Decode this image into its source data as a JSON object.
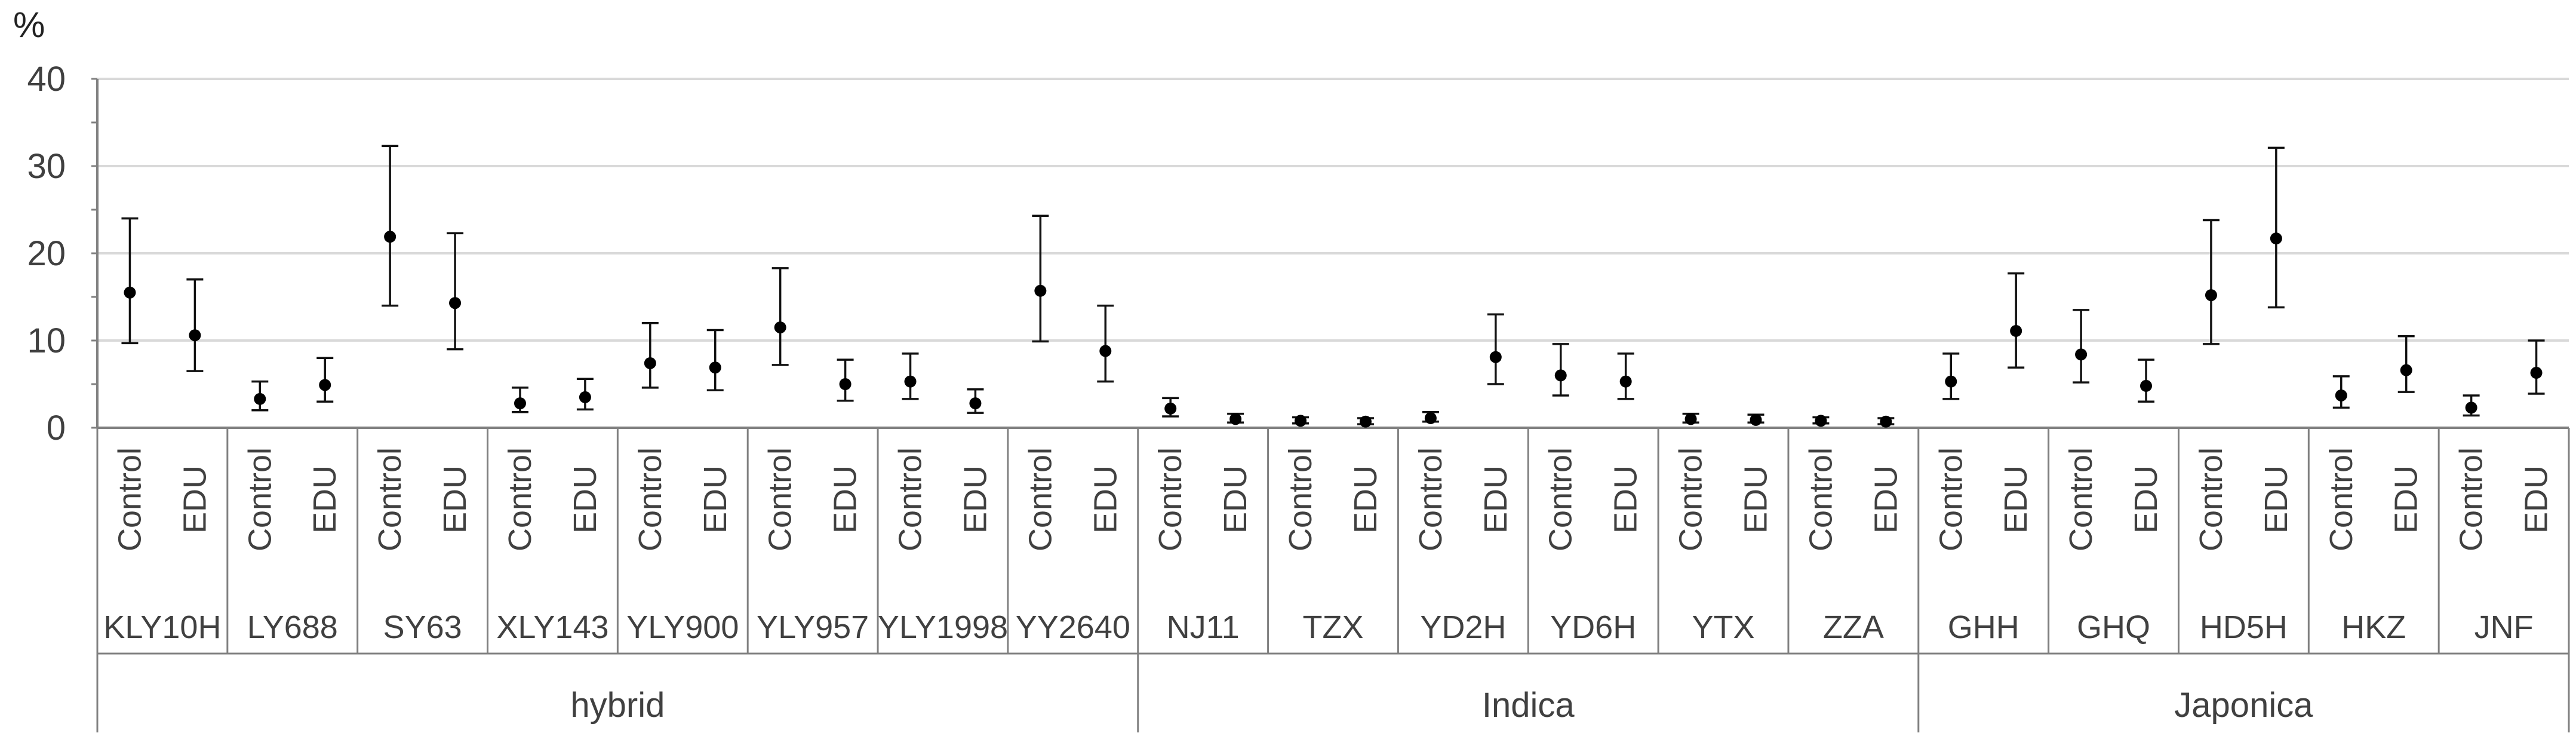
{
  "chart_data": {
    "type": "scatter",
    "ylabel": "%",
    "ylim": [
      0,
      40
    ],
    "yticks": [
      0,
      10,
      20,
      30,
      40
    ],
    "grid": true,
    "error_bars": true,
    "groups": [
      {
        "name": "hybrid",
        "varieties": [
          {
            "name": "KLY10H",
            "points": [
              {
                "condition": "Control",
                "mean": 15.5,
                "low": 9.7,
                "high": 24.0
              },
              {
                "condition": "EDU",
                "mean": 10.6,
                "low": 6.5,
                "high": 17.0
              }
            ]
          },
          {
            "name": "LY688",
            "points": [
              {
                "condition": "Control",
                "mean": 3.3,
                "low": 2.0,
                "high": 5.3
              },
              {
                "condition": "EDU",
                "mean": 4.9,
                "low": 3.0,
                "high": 8.0
              }
            ]
          },
          {
            "name": "SY63",
            "points": [
              {
                "condition": "Control",
                "mean": 21.9,
                "low": 14.0,
                "high": 32.3
              },
              {
                "condition": "EDU",
                "mean": 14.3,
                "low": 9.0,
                "high": 22.3
              }
            ]
          },
          {
            "name": "XLY143",
            "points": [
              {
                "condition": "Control",
                "mean": 2.8,
                "low": 1.8,
                "high": 4.6
              },
              {
                "condition": "EDU",
                "mean": 3.5,
                "low": 2.1,
                "high": 5.6
              }
            ]
          },
          {
            "name": "YLY900",
            "points": [
              {
                "condition": "Control",
                "mean": 7.4,
                "low": 4.6,
                "high": 12.0
              },
              {
                "condition": "EDU",
                "mean": 6.9,
                "low": 4.3,
                "high": 11.2
              }
            ]
          },
          {
            "name": "YLY957",
            "points": [
              {
                "condition": "Control",
                "mean": 11.5,
                "low": 7.2,
                "high": 18.3
              },
              {
                "condition": "EDU",
                "mean": 5.0,
                "low": 3.1,
                "high": 7.8
              }
            ]
          },
          {
            "name": "YLY1998",
            "points": [
              {
                "condition": "Control",
                "mean": 5.3,
                "low": 3.3,
                "high": 8.5
              },
              {
                "condition": "EDU",
                "mean": 2.8,
                "low": 1.7,
                "high": 4.4
              }
            ]
          },
          {
            "name": "YY2640",
            "points": [
              {
                "condition": "Control",
                "mean": 15.7,
                "low": 9.9,
                "high": 24.3
              },
              {
                "condition": "EDU",
                "mean": 8.8,
                "low": 5.3,
                "high": 14.0
              }
            ]
          }
        ]
      },
      {
        "name": "Indica",
        "varieties": [
          {
            "name": "NJ11",
            "points": [
              {
                "condition": "Control",
                "mean": 2.2,
                "low": 1.3,
                "high": 3.4
              },
              {
                "condition": "EDU",
                "mean": 1.0,
                "low": 0.6,
                "high": 1.6
              }
            ]
          },
          {
            "name": "TZX",
            "points": [
              {
                "condition": "Control",
                "mean": 0.8,
                "low": 0.5,
                "high": 1.2
              },
              {
                "condition": "EDU",
                "mean": 0.7,
                "low": 0.4,
                "high": 1.1
              }
            ]
          },
          {
            "name": "YD2H",
            "points": [
              {
                "condition": "Control",
                "mean": 1.1,
                "low": 0.7,
                "high": 1.8
              },
              {
                "condition": "EDU",
                "mean": 8.1,
                "low": 5.0,
                "high": 13.0
              }
            ]
          },
          {
            "name": "YD6H",
            "points": [
              {
                "condition": "Control",
                "mean": 6.0,
                "low": 3.7,
                "high": 9.6
              },
              {
                "condition": "EDU",
                "mean": 5.3,
                "low": 3.3,
                "high": 8.5
              }
            ]
          },
          {
            "name": "YTX",
            "points": [
              {
                "condition": "Control",
                "mean": 1.0,
                "low": 0.6,
                "high": 1.6
              },
              {
                "condition": "EDU",
                "mean": 0.9,
                "low": 0.6,
                "high": 1.5
              }
            ]
          },
          {
            "name": "ZZA",
            "points": [
              {
                "condition": "Control",
                "mean": 0.8,
                "low": 0.5,
                "high": 1.2
              },
              {
                "condition": "EDU",
                "mean": 0.7,
                "low": 0.4,
                "high": 1.1
              }
            ]
          }
        ]
      },
      {
        "name": "Japonica",
        "varieties": [
          {
            "name": "GHH",
            "points": [
              {
                "condition": "Control",
                "mean": 5.3,
                "low": 3.3,
                "high": 8.5
              },
              {
                "condition": "EDU",
                "mean": 11.1,
                "low": 6.9,
                "high": 17.7
              }
            ]
          },
          {
            "name": "GHQ",
            "points": [
              {
                "condition": "Control",
                "mean": 8.4,
                "low": 5.2,
                "high": 13.5
              },
              {
                "condition": "EDU",
                "mean": 4.8,
                "low": 3.0,
                "high": 7.8
              }
            ]
          },
          {
            "name": "HD5H",
            "points": [
              {
                "condition": "Control",
                "mean": 15.2,
                "low": 9.6,
                "high": 23.8
              },
              {
                "condition": "EDU",
                "mean": 21.7,
                "low": 13.8,
                "high": 32.1
              }
            ]
          },
          {
            "name": "HKZ",
            "points": [
              {
                "condition": "Control",
                "mean": 3.7,
                "low": 2.3,
                "high": 5.9
              },
              {
                "condition": "EDU",
                "mean": 6.6,
                "low": 4.1,
                "high": 10.5
              }
            ]
          },
          {
            "name": "JNF",
            "points": [
              {
                "condition": "Control",
                "mean": 2.3,
                "low": 1.4,
                "high": 3.7
              },
              {
                "condition": "EDU",
                "mean": 6.3,
                "low": 3.9,
                "high": 10.0
              }
            ]
          }
        ]
      }
    ]
  }
}
